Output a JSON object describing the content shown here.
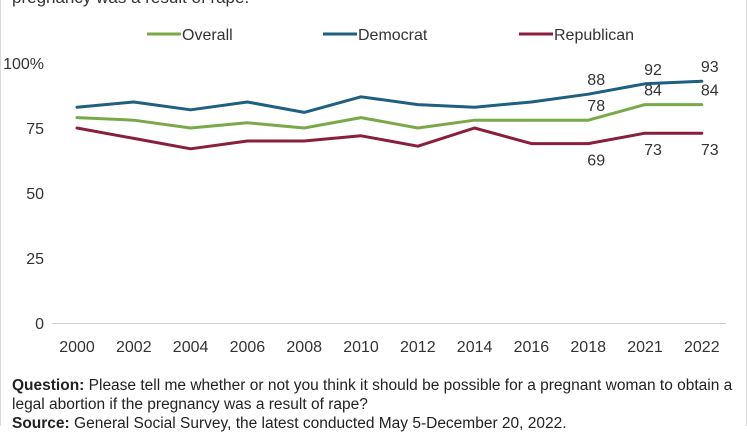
{
  "title_fragment": "pregnancy was a result of rape.",
  "footer": {
    "question_label": "Question:",
    "question_text": "Please tell me whether or not you think it should be possible for a pregnant woman to obtain a legal abortion if the pregnancy was a result of rape?",
    "source_label": "Source:",
    "source_text": "General Social Survey, the latest conducted May 5-December 20, 2022."
  },
  "chart_data": {
    "type": "line",
    "categories": [
      "2000",
      "2002",
      "2004",
      "2006",
      "2008",
      "2010",
      "2012",
      "2014",
      "2016",
      "2018",
      "2021",
      "2022"
    ],
    "ylim": [
      0,
      100
    ],
    "yticks": [
      "0",
      "25",
      "50",
      "75",
      "100%"
    ],
    "ytick_values": [
      0,
      25,
      50,
      75,
      100
    ],
    "legend_position": "top",
    "grid": false,
    "series": [
      {
        "name": "Overall",
        "color": "#7aa94a",
        "values": [
          79,
          78,
          75,
          77,
          75,
          79,
          75,
          78,
          78,
          78,
          84,
          84
        ],
        "labels": [
          {
            "index": 9,
            "text": "78"
          },
          {
            "index": 10,
            "text": "84"
          },
          {
            "index": 11,
            "text": "84"
          }
        ]
      },
      {
        "name": "Democrat",
        "color": "#1f5f7f",
        "values": [
          83,
          85,
          82,
          85,
          81,
          87,
          84,
          83,
          85,
          88,
          92,
          93
        ],
        "labels": [
          {
            "index": 9,
            "text": "88"
          },
          {
            "index": 10,
            "text": "92"
          },
          {
            "index": 11,
            "text": "93"
          }
        ]
      },
      {
        "name": "Republican",
        "color": "#8a1f3c",
        "values": [
          75,
          71,
          67,
          70,
          70,
          72,
          68,
          75,
          69,
          69,
          73,
          73
        ],
        "labels": [
          {
            "index": 9,
            "text": "69"
          },
          {
            "index": 10,
            "text": "73"
          },
          {
            "index": 11,
            "text": "73"
          }
        ]
      }
    ]
  }
}
